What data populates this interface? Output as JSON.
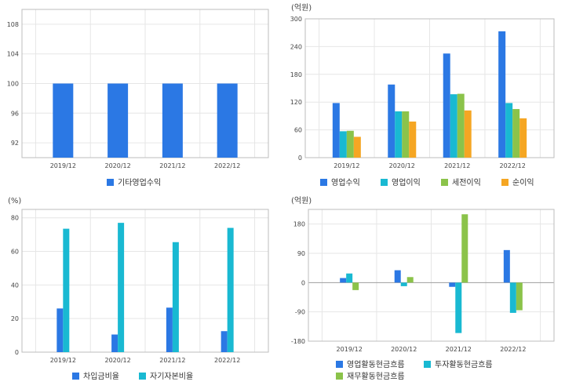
{
  "colors": {
    "blue": "#2b78e4",
    "cyan": "#19b9d2",
    "green": "#8bc34a",
    "orange": "#f5a623"
  },
  "chart_data": [
    {
      "type": "bar",
      "unit": "",
      "categories": [
        "2019/12",
        "2020/12",
        "2021/12",
        "2022/12"
      ],
      "ylim": [
        90,
        110
      ],
      "yticks": [
        92,
        96,
        100,
        104,
        108
      ],
      "grid": true,
      "legend_position": "bottom",
      "series": [
        {
          "name": "기타영업수익",
          "color": "#2b78e4",
          "values": [
            100,
            100,
            100,
            100
          ]
        }
      ]
    },
    {
      "type": "bar",
      "unit": "(억원)",
      "categories": [
        "2019/12",
        "2020/12",
        "2021/12",
        "2022/12"
      ],
      "ylim": [
        0,
        300
      ],
      "yticks": [
        0,
        60,
        120,
        180,
        240,
        300
      ],
      "grid": true,
      "legend_position": "bottom",
      "series": [
        {
          "name": "영업수익",
          "color": "#2b78e4",
          "values": [
            118,
            158,
            225,
            273
          ]
        },
        {
          "name": "영업이익",
          "color": "#19b9d2",
          "values": [
            57,
            100,
            137,
            118
          ]
        },
        {
          "name": "세전이익",
          "color": "#8bc34a",
          "values": [
            58,
            100,
            138,
            105
          ]
        },
        {
          "name": "순이익",
          "color": "#f5a623",
          "values": [
            45,
            78,
            102,
            85
          ]
        }
      ]
    },
    {
      "type": "bar",
      "unit": "(%)",
      "categories": [
        "2019/12",
        "2020/12",
        "2021/12",
        "2022/12"
      ],
      "ylim": [
        0,
        85
      ],
      "yticks": [
        0,
        20,
        40,
        60,
        80
      ],
      "grid": true,
      "legend_position": "bottom",
      "series": [
        {
          "name": "차입금비율",
          "color": "#2b78e4",
          "values": [
            26,
            10.5,
            26.5,
            12.5
          ]
        },
        {
          "name": "자기자본비율",
          "color": "#19b9d2",
          "values": [
            73.5,
            77,
            65.5,
            74
          ]
        }
      ]
    },
    {
      "type": "bar",
      "unit": "(억원)",
      "categories": [
        "2019/12",
        "2020/12",
        "2021/12",
        "2022/12"
      ],
      "ylim": [
        -180,
        225
      ],
      "yticks": [
        -180,
        -90,
        0,
        90,
        180
      ],
      "grid": true,
      "legend_position": "bottom",
      "series": [
        {
          "name": "영업활동현금흐름",
          "color": "#2b78e4",
          "values": [
            14,
            38,
            -13,
            100
          ]
        },
        {
          "name": "투자활동현금흐름",
          "color": "#19b9d2",
          "values": [
            28,
            -11,
            -155,
            -93
          ]
        },
        {
          "name": "재무활동현금흐름",
          "color": "#8bc34a",
          "values": [
            -23,
            17,
            210,
            -85
          ]
        }
      ]
    }
  ]
}
